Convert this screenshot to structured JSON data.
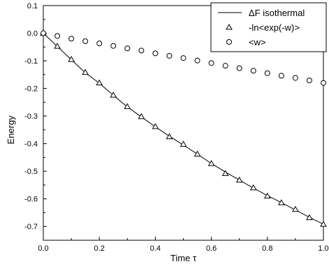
{
  "chart_data": {
    "type": "line",
    "xlabel": "Time τ",
    "ylabel": "Energy",
    "xlim": [
      0.0,
      1.0
    ],
    "ylim": [
      -0.75,
      0.1
    ],
    "x_ticks": [
      "0.0",
      "0.2",
      "0.4",
      "0.6",
      "0.8",
      "1.0"
    ],
    "y_ticks": [
      "0.1",
      "0.0",
      "-0.1",
      "-0.2",
      "-0.3",
      "-0.4",
      "-0.5",
      "-0.6",
      "-0.7"
    ],
    "grid": false,
    "legend_position": "top-right",
    "series": [
      {
        "name": "ΔF isothermal",
        "style": "line",
        "color": "#000000",
        "x": [
          0.0,
          0.05,
          0.1,
          0.15,
          0.2,
          0.25,
          0.3,
          0.35,
          0.4,
          0.45,
          0.5,
          0.55,
          0.6,
          0.65,
          0.7,
          0.75,
          0.8,
          0.85,
          0.9,
          0.95,
          1.0
        ],
        "y": [
          0.0,
          -0.048,
          -0.096,
          -0.143,
          -0.181,
          -0.225,
          -0.267,
          -0.303,
          -0.339,
          -0.373,
          -0.405,
          -0.438,
          -0.472,
          -0.503,
          -0.532,
          -0.561,
          -0.588,
          -0.614,
          -0.64,
          -0.667,
          -0.692
        ]
      },
      {
        "name": "-ln<exp(-w)>",
        "style": "triangle",
        "color": "#000000",
        "x": [
          0.0,
          0.05,
          0.1,
          0.15,
          0.2,
          0.25,
          0.3,
          0.35,
          0.4,
          0.45,
          0.5,
          0.55,
          0.6,
          0.65,
          0.7,
          0.75,
          0.8,
          0.85,
          0.9,
          0.95,
          1.0
        ],
        "y": [
          0.0,
          -0.047,
          -0.095,
          -0.142,
          -0.18,
          -0.224,
          -0.266,
          -0.302,
          -0.338,
          -0.375,
          -0.402,
          -0.438,
          -0.472,
          -0.508,
          -0.532,
          -0.56,
          -0.59,
          -0.614,
          -0.638,
          -0.668,
          -0.692
        ]
      },
      {
        "name": "<w>",
        "style": "circle",
        "color": "#000000",
        "x": [
          0.0,
          0.05,
          0.1,
          0.15,
          0.2,
          0.25,
          0.3,
          0.35,
          0.4,
          0.45,
          0.5,
          0.55,
          0.6,
          0.65,
          0.7,
          0.75,
          0.8,
          0.85,
          0.9,
          0.95,
          1.0
        ],
        "y": [
          0.0,
          -0.01,
          -0.02,
          -0.029,
          -0.037,
          -0.046,
          -0.055,
          -0.063,
          -0.073,
          -0.082,
          -0.09,
          -0.099,
          -0.108,
          -0.118,
          -0.127,
          -0.136,
          -0.145,
          -0.154,
          -0.162,
          -0.171,
          -0.18
        ]
      }
    ]
  }
}
